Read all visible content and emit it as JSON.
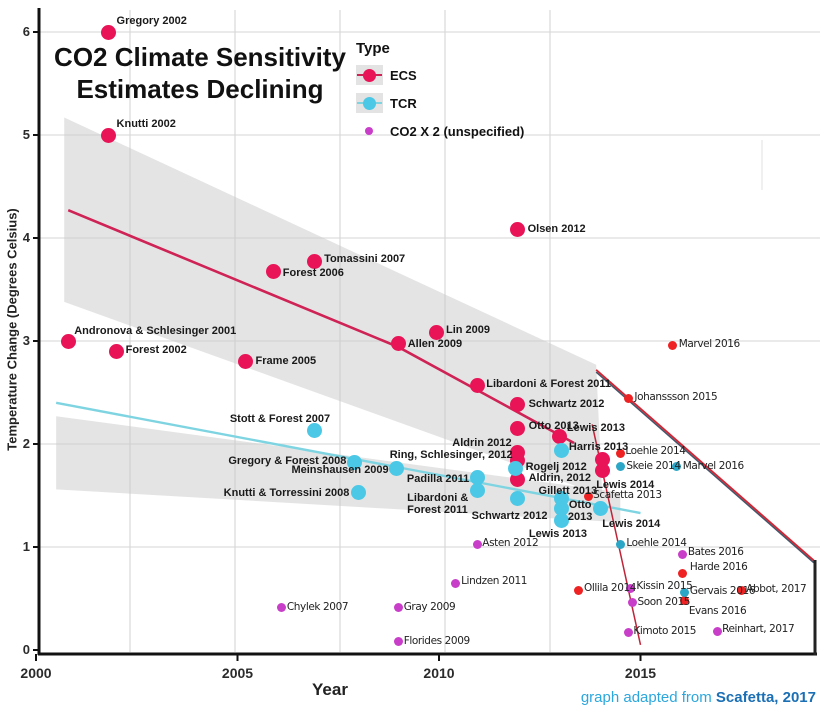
{
  "title": {
    "line1": "CO2 Climate Sensitivity",
    "line2": "Estimates Declining"
  },
  "caption": {
    "prefix": "graph adapted from",
    "source": "Scafetta, 2017"
  },
  "legend": {
    "title": "Type",
    "items": [
      {
        "label": "ECS",
        "color": "#e91457",
        "swatch": "band",
        "line_color": "#cf2255"
      },
      {
        "label": "TCR",
        "color": "#4bc8e6",
        "swatch": "band",
        "line_color": "#7fd4e2"
      },
      {
        "label": "CO2 X 2 (unspecified)",
        "color": "#c93ec9",
        "swatch": "dot"
      }
    ]
  },
  "chart_data": {
    "type": "scatter",
    "title": "CO2 Climate Sensitivity Estimates Declining",
    "xlabel": "Year",
    "ylabel": "Temperature Change (Degrees Celsius)",
    "xlim": [
      2000,
      2019.5
    ],
    "ylim": [
      0,
      6.2
    ],
    "x_ticks": [
      2000,
      2005,
      2010,
      2015
    ],
    "y_ticks": [
      0,
      1,
      2,
      3,
      4,
      5,
      6
    ],
    "grid": true,
    "legend_position": "top-center",
    "series": [
      {
        "name": "ECS",
        "marker": "large",
        "color": "#e91457",
        "label_style": "bold",
        "points": [
          {
            "label": "Gregory 2002",
            "x": 2001.8,
            "y": 6.0,
            "dx": 8,
            "dy": -17
          },
          {
            "label": "Knutti 2002",
            "x": 2001.8,
            "y": 5.0,
            "dx": 8,
            "dy": -17
          },
          {
            "label": "Andronova & Schlesinger 2001",
            "x": 2000.8,
            "y": 3.0,
            "dx": 6,
            "dy": -16
          },
          {
            "label": "Forest 2002",
            "x": 2002.0,
            "y": 2.9,
            "dx": 9,
            "dy": -7
          },
          {
            "label": "Frame 2005",
            "x": 2005.2,
            "y": 2.8,
            "dx": 10,
            "dy": -7
          },
          {
            "label": "Forest 2006",
            "x": 2005.9,
            "y": 3.67,
            "dx": 9,
            "dy": -5
          },
          {
            "label": "Tomassini 2007",
            "x": 2006.9,
            "y": 3.77,
            "dx": 10,
            "dy": -9
          },
          {
            "label": "Allen 2009",
            "x": 2009.0,
            "y": 2.98,
            "dx": 9,
            "dy": -5
          },
          {
            "label": "Lin 2009",
            "x": 2009.95,
            "y": 3.08,
            "dx": 9,
            "dy": -9
          },
          {
            "label": "Olsen 2012",
            "x": 2011.95,
            "y": 4.08,
            "dx": 10,
            "dy": -7
          },
          {
            "label": "Libardoni & Forest 2011",
            "x": 2010.95,
            "y": 2.57,
            "dx": 9,
            "dy": -7
          },
          {
            "label": "Schwartz 2012",
            "x": 2011.95,
            "y": 2.38,
            "dx": 11,
            "dy": -7
          },
          {
            "label": "Otto 2013",
            "x": 2011.95,
            "y": 2.15,
            "dx": 11,
            "dy": -9
          },
          {
            "label": "Lewis 2013",
            "x": 2013.0,
            "y": 2.07,
            "dx": 7,
            "dy": -15
          },
          {
            "label": "Aldrin 2012",
            "x": 2011.95,
            "y": 1.92,
            "dx": -6,
            "dy": -15,
            "anchor": "end"
          },
          {
            "label": "Ring, Schlesinger, 2012",
            "x": 2011.95,
            "y": 1.84,
            "dx": -5,
            "dy": -11,
            "anchor": "end"
          },
          {
            "label": "Aldrin, 2012",
            "x": 2011.95,
            "y": 1.66,
            "dx": 11,
            "dy": -7
          },
          {
            "label": "",
            "x": 2014.05,
            "y": 1.85
          },
          {
            "label": "Lewis 2014",
            "x": 2014.05,
            "y": 1.74,
            "dx": -6,
            "dy": 8
          }
        ]
      },
      {
        "name": "TCR",
        "marker": "large",
        "color": "#4bc8e6",
        "label_style": "bold",
        "points": [
          {
            "label": "Stott & Forest 2007",
            "x": 2006.9,
            "y": 2.13,
            "dx": 16,
            "dy": -18,
            "anchor": "end"
          },
          {
            "label": "Gregory & Forest 2008",
            "x": 2007.9,
            "y": 1.82,
            "dx": -8,
            "dy": -8,
            "anchor": "end"
          },
          {
            "label": "Meinshausen 2009",
            "x": 2008.95,
            "y": 1.76,
            "dx": -8,
            "dy": -5,
            "anchor": "end"
          },
          {
            "label": "Knutti & Torressini 2008",
            "x": 2008.0,
            "y": 1.53,
            "dx": -9,
            "dy": -5,
            "anchor": "end"
          },
          {
            "label": "Padilla 2011",
            "x": 2010.95,
            "y": 1.67,
            "dx": -8,
            "dy": -5,
            "anchor": "end"
          },
          {
            "label": "Libardoni &\nForest 2011",
            "x": 2010.95,
            "y": 1.55,
            "dx": -9,
            "dy": 2,
            "anchor": "end"
          },
          {
            "label": "Rogelj 2012",
            "x": 2011.9,
            "y": 1.76,
            "dx": 10,
            "dy": -8
          },
          {
            "label": "Harris 2013",
            "x": 2013.05,
            "y": 1.94,
            "dx": 7,
            "dy": -9
          },
          {
            "label": "Gillett 2013",
            "x": 2013.05,
            "y": 1.47,
            "dx": 0,
            "dy": -14,
            "anchor": "middle"
          },
          {
            "label": "Schwartz 2012",
            "x": 2011.95,
            "y": 1.47,
            "dx": -8,
            "dy": 11,
            "anchor": "middle"
          },
          {
            "label": "Otto\n2013",
            "x": 2013.05,
            "y": 1.37,
            "dx": 6,
            "dy": -10
          },
          {
            "label": "Lewis 2013",
            "x": 2013.05,
            "y": 1.26,
            "dx": -4,
            "dy": 8,
            "anchor": "middle"
          },
          {
            "label": "Lewis 2014",
            "x": 2014.0,
            "y": 1.37,
            "dx": 2,
            "dy": 9
          }
        ]
      },
      {
        "name": "ECS (recent studies)",
        "marker": "small",
        "color": "#ee2222",
        "label_style": "hand",
        "points": [
          {
            "label": "Marvel 2016",
            "x": 2015.8,
            "y": 2.96,
            "dx": 6,
            "dy": -7
          },
          {
            "label": "Johanssson 2015",
            "x": 2014.7,
            "y": 2.44,
            "dx": 6,
            "dy": -8
          },
          {
            "label": "Loehle 2014",
            "x": 2014.5,
            "y": 1.91,
            "dx": 5,
            "dy": -8
          },
          {
            "label": "Scafetta 2013",
            "x": 2013.7,
            "y": 1.49,
            "dx": 5,
            "dy": -8
          },
          {
            "label": "Ollila 2014",
            "x": 2013.45,
            "y": 0.58,
            "dx": 6,
            "dy": -8
          },
          {
            "label": "Harde 2016",
            "x": 2016.05,
            "y": 0.74,
            "dx": 7,
            "dy": -13
          },
          {
            "label": "Evans 2016",
            "x": 2016.1,
            "y": 0.48,
            "dx": 4,
            "dy": 4
          },
          {
            "label": "Abbot, 2017",
            "x": 2017.5,
            "y": 0.58,
            "dx": 5,
            "dy": -7
          }
        ]
      },
      {
        "name": "TCR (recent studies)",
        "marker": "small",
        "color": "#2ba6c6",
        "label_style": "hand",
        "points": [
          {
            "label": "Skeie 2014",
            "x": 2014.5,
            "y": 1.78,
            "dx": 6,
            "dy": -7
          },
          {
            "label": "Marvel 2016",
            "x": 2015.9,
            "y": 1.78,
            "dx": 6,
            "dy": -7
          },
          {
            "label": "Loehle 2014",
            "x": 2014.5,
            "y": 1.02,
            "dx": 6,
            "dy": -8
          },
          {
            "label": "Gervais 2016",
            "x": 2016.1,
            "y": 0.56,
            "dx": 5,
            "dy": -7
          }
        ]
      },
      {
        "name": "CO2 X 2 (unspecified)",
        "marker": "small",
        "color": "#c93ec9",
        "label_style": "hand",
        "points": [
          {
            "label": "Chylek 2007",
            "x": 2006.1,
            "y": 0.41,
            "dx": 5,
            "dy": -7
          },
          {
            "label": "Gray 2009",
            "x": 2009.0,
            "y": 0.41,
            "dx": 5,
            "dy": -7
          },
          {
            "label": "Florides 2009",
            "x": 2009.0,
            "y": 0.08,
            "dx": 5,
            "dy": -7
          },
          {
            "label": "Lindzen 2011",
            "x": 2010.4,
            "y": 0.65,
            "dx": 6,
            "dy": -8
          },
          {
            "label": "Asten 2012",
            "x": 2010.95,
            "y": 1.02,
            "dx": 5,
            "dy": -8
          },
          {
            "label": "Kissin 2015",
            "x": 2014.75,
            "y": 0.6,
            "dx": 6,
            "dy": -8
          },
          {
            "label": "Soon 2015",
            "x": 2014.8,
            "y": 0.46,
            "dx": 5,
            "dy": -7
          },
          {
            "label": "Kimoto 2015",
            "x": 2014.7,
            "y": 0.17,
            "dx": 5,
            "dy": -7
          },
          {
            "label": "Bates 2016",
            "x": 2016.05,
            "y": 0.93,
            "dx": 5,
            "dy": -8
          },
          {
            "label": "Reinhart, 2017",
            "x": 2016.9,
            "y": 0.18,
            "dx": 5,
            "dy": -8
          }
        ]
      }
    ],
    "trend_lines": [
      {
        "name": "ECS trend",
        "color": "#cf2255",
        "width": 2.6,
        "points": [
          [
            2000.8,
            4.27
          ],
          [
            2009.0,
            2.94
          ],
          [
            2013.35,
            2.01
          ]
        ]
      },
      {
        "name": "TCR trend",
        "color": "#7fd4e2",
        "width": 2.4,
        "points": [
          [
            2000.5,
            2.4
          ],
          [
            2015.0,
            1.33
          ]
        ]
      },
      {
        "name": "ECS extrapolation upper",
        "color": "#d42432",
        "width": 1.8,
        "shadow": "#44566b",
        "points": [
          [
            2013.9,
            2.72
          ],
          [
            2019.3,
            0.87
          ]
        ]
      },
      {
        "name": "ECS extrapolation lower",
        "color": "#c02438",
        "width": 1.5,
        "points": [
          [
            2013.8,
            2.19
          ],
          [
            2015.0,
            0.05
          ]
        ]
      }
    ],
    "confidence_bands": [
      {
        "name": "ECS band",
        "color": "#c9c9c9",
        "opacity": 0.5,
        "points": [
          [
            2000.7,
            5.17
          ],
          [
            2013.9,
            2.77
          ],
          [
            2014.05,
            1.5
          ],
          [
            2000.7,
            3.38
          ]
        ]
      },
      {
        "name": "TCR band",
        "color": "#c9c9c9",
        "opacity": 0.5,
        "points": [
          [
            2000.5,
            2.27
          ],
          [
            2014.5,
            1.53
          ],
          [
            2014.5,
            1.24
          ],
          [
            2000.5,
            1.56
          ]
        ]
      }
    ]
  }
}
